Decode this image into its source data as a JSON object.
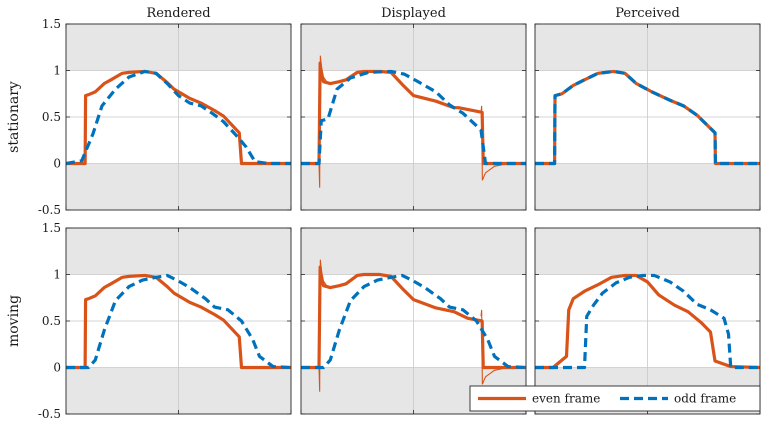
{
  "chart_data": {
    "type": "line",
    "columns": [
      "Rendered",
      "Displayed",
      "Perceived"
    ],
    "rows": [
      "stationary",
      "moving"
    ],
    "yticks": [
      -0.5,
      0,
      0.5,
      1,
      1.5
    ],
    "ytick_labels": [
      "-0.5",
      "0",
      "0.5",
      "1",
      "1.5"
    ],
    "ylim": [
      -0.5,
      1.5
    ],
    "xlim": [
      0,
      1
    ],
    "shaded_regions": [
      [
        -0.5,
        0
      ],
      [
        1,
        1.5
      ]
    ],
    "grid": true,
    "legend": {
      "position": "bottom-right",
      "entries": [
        "even frame",
        "odd frame"
      ]
    },
    "series_colors": {
      "even frame": "#D95319",
      "odd frame": "#0072BD"
    },
    "series_styles": {
      "even frame": "solid",
      "odd frame": "dashed"
    },
    "panels": [
      {
        "row": "stationary",
        "column": "Rendered",
        "series": [
          {
            "name": "even frame",
            "x": [
              0,
              0.085,
              0.087,
              0.1,
              0.13,
              0.17,
              0.2,
              0.25,
              0.28,
              0.35,
              0.4,
              0.45,
              0.48,
              0.55,
              0.6,
              0.66,
              0.7,
              0.77,
              0.78,
              0.8,
              1.0
            ],
            "y": [
              0,
              0,
              0.73,
              0.74,
              0.77,
              0.86,
              0.9,
              0.97,
              0.98,
              0.99,
              0.97,
              0.87,
              0.8,
              0.7,
              0.65,
              0.57,
              0.51,
              0.33,
              0,
              0,
              0
            ]
          },
          {
            "name": "odd frame",
            "x": [
              0,
              0.07,
              0.12,
              0.16,
              0.22,
              0.28,
              0.35,
              0.4,
              0.45,
              0.5,
              0.55,
              0.6,
              0.65,
              0.7,
              0.75,
              0.8,
              0.84,
              0.9,
              1.0
            ],
            "y": [
              0,
              0.03,
              0.32,
              0.62,
              0.8,
              0.93,
              0.99,
              0.97,
              0.86,
              0.73,
              0.65,
              0.62,
              0.54,
              0.45,
              0.32,
              0.18,
              0.02,
              0,
              0
            ]
          }
        ]
      },
      {
        "row": "stationary",
        "column": "Displayed",
        "series": [
          {
            "name": "even frame",
            "x": [
              0,
              0.08,
              0.085,
              0.09,
              0.1,
              0.13,
              0.17,
              0.2,
              0.25,
              0.28,
              0.35,
              0.4,
              0.45,
              0.5,
              0.6,
              0.68,
              0.7,
              0.805,
              0.81,
              0.83,
              1.0
            ],
            "y": [
              0,
              0,
              1.08,
              0.96,
              0.88,
              0.86,
              0.88,
              0.9,
              0.98,
              0.99,
              0.99,
              0.98,
              0.85,
              0.73,
              0.67,
              0.6,
              0.6,
              0.55,
              0,
              0,
              0
            ]
          },
          {
            "name": "odd frame",
            "x": [
              0,
              0.08,
              0.09,
              0.12,
              0.16,
              0.22,
              0.3,
              0.4,
              0.46,
              0.52,
              0.6,
              0.66,
              0.72,
              0.8,
              0.82,
              1.0
            ],
            "y": [
              0,
              0,
              0.46,
              0.48,
              0.8,
              0.92,
              0.98,
              0.99,
              0.96,
              0.88,
              0.77,
              0.63,
              0.54,
              0.36,
              0,
              0
            ]
          }
        ]
      },
      {
        "row": "stationary",
        "column": "Perceived",
        "series": [
          {
            "name": "even frame",
            "x": [
              0,
              0.087,
              0.089,
              0.12,
              0.17,
              0.22,
              0.28,
              0.35,
              0.4,
              0.45,
              0.52,
              0.6,
              0.66,
              0.72,
              0.8,
              0.802,
              1.0
            ],
            "y": [
              0,
              0,
              0.73,
              0.75,
              0.84,
              0.9,
              0.97,
              0.99,
              0.97,
              0.86,
              0.77,
              0.68,
              0.62,
              0.52,
              0.33,
              0,
              0
            ]
          },
          {
            "name": "odd frame",
            "x": [
              0,
              0.087,
              0.089,
              0.12,
              0.17,
              0.22,
              0.28,
              0.35,
              0.4,
              0.45,
              0.52,
              0.6,
              0.66,
              0.72,
              0.8,
              0.802,
              1.0
            ],
            "y": [
              0,
              0,
              0.73,
              0.75,
              0.84,
              0.9,
              0.97,
              0.99,
              0.97,
              0.86,
              0.77,
              0.68,
              0.62,
              0.52,
              0.33,
              0,
              0
            ]
          }
        ]
      },
      {
        "row": "moving",
        "column": "Rendered",
        "series": [
          {
            "name": "even frame",
            "x": [
              0,
              0.085,
              0.087,
              0.1,
              0.13,
              0.17,
              0.2,
              0.25,
              0.28,
              0.35,
              0.4,
              0.45,
              0.48,
              0.55,
              0.6,
              0.66,
              0.7,
              0.77,
              0.78,
              0.8,
              1.0
            ],
            "y": [
              0,
              0,
              0.73,
              0.74,
              0.77,
              0.86,
              0.9,
              0.97,
              0.98,
              0.99,
              0.97,
              0.87,
              0.8,
              0.7,
              0.65,
              0.57,
              0.51,
              0.33,
              0,
              0,
              0
            ]
          },
          {
            "name": "odd frame",
            "x": [
              0,
              0.1,
              0.13,
              0.17,
              0.22,
              0.28,
              0.34,
              0.4,
              0.45,
              0.5,
              0.55,
              0.62,
              0.66,
              0.72,
              0.78,
              0.83,
              0.86,
              0.92,
              1.0
            ],
            "y": [
              0,
              0,
              0.08,
              0.4,
              0.72,
              0.87,
              0.94,
              0.97,
              0.99,
              0.93,
              0.86,
              0.74,
              0.65,
              0.62,
              0.5,
              0.3,
              0.12,
              0.01,
              0
            ]
          }
        ]
      },
      {
        "row": "moving",
        "column": "Displayed",
        "series": [
          {
            "name": "even frame",
            "x": [
              0,
              0.08,
              0.085,
              0.09,
              0.1,
              0.13,
              0.17,
              0.2,
              0.25,
              0.28,
              0.35,
              0.4,
              0.45,
              0.5,
              0.6,
              0.68,
              0.74,
              0.805,
              0.81,
              0.83,
              1.0
            ],
            "y": [
              0,
              0,
              1.08,
              0.96,
              0.88,
              0.86,
              0.88,
              0.9,
              0.99,
              1.0,
              1.0,
              0.98,
              0.85,
              0.73,
              0.64,
              0.6,
              0.53,
              0.5,
              0,
              0,
              0
            ]
          },
          {
            "name": "odd frame",
            "x": [
              0,
              0.1,
              0.13,
              0.17,
              0.22,
              0.28,
              0.34,
              0.4,
              0.45,
              0.5,
              0.55,
              0.62,
              0.66,
              0.72,
              0.78,
              0.83,
              0.86,
              0.92,
              1.0
            ],
            "y": [
              0,
              0,
              0.08,
              0.4,
              0.72,
              0.87,
              0.94,
              0.97,
              0.99,
              0.93,
              0.86,
              0.74,
              0.65,
              0.62,
              0.5,
              0.3,
              0.12,
              0.01,
              0
            ]
          }
        ]
      },
      {
        "row": "moving",
        "column": "Perceived",
        "series": [
          {
            "name": "even frame",
            "x": [
              0,
              0.08,
              0.14,
              0.15,
              0.17,
              0.22,
              0.28,
              0.34,
              0.4,
              0.45,
              0.5,
              0.55,
              0.62,
              0.68,
              0.74,
              0.78,
              0.8,
              0.87,
              1.0
            ],
            "y": [
              0,
              0,
              0.12,
              0.62,
              0.74,
              0.82,
              0.89,
              0.97,
              0.99,
              0.99,
              0.92,
              0.78,
              0.67,
              0.6,
              0.48,
              0.38,
              0.07,
              0.01,
              0
            ]
          },
          {
            "name": "odd frame",
            "x": [
              0,
              0.22,
              0.23,
              0.26,
              0.3,
              0.36,
              0.42,
              0.48,
              0.53,
              0.6,
              0.66,
              0.72,
              0.78,
              0.84,
              0.86,
              0.87,
              1.0
            ],
            "y": [
              0,
              0,
              0.55,
              0.67,
              0.8,
              0.91,
              0.97,
              0.99,
              0.99,
              0.92,
              0.82,
              0.68,
              0.62,
              0.53,
              0.36,
              0,
              0
            ]
          }
        ]
      }
    ],
    "overshoot": {
      "panels": [
        "stationary|Displayed",
        "moving|Displayed"
      ],
      "first": {
        "x": [
          0.08,
          0.083,
          0.084,
          0.086,
          0.09,
          0.1,
          0.12
        ],
        "y": [
          0,
          -0.26,
          0.3,
          1.16,
          1.05,
          0.93,
          0.86
        ]
      },
      "second": {
        "x": [
          0.8,
          0.803,
          0.806,
          0.82,
          0.86,
          0.92,
          1.0
        ],
        "y": [
          0.55,
          0.62,
          -0.18,
          -0.1,
          -0.03,
          0,
          0
        ]
      }
    }
  }
}
